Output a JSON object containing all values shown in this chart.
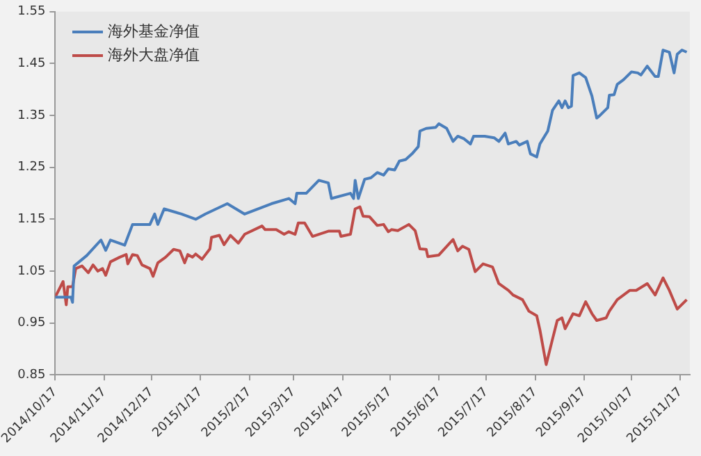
{
  "chart_data": {
    "type": "line",
    "xlim": [
      "2014-10-17",
      "2015-11-23"
    ],
    "xticks": [
      {
        "value": "2014-10-17",
        "label": "2014/10/17"
      },
      {
        "value": "2014-11-17",
        "label": "2014/11/17"
      },
      {
        "value": "2014-12-17",
        "label": "2014/12/17"
      },
      {
        "value": "2015-01-17",
        "label": "2015/1/17"
      },
      {
        "value": "2015-02-17",
        "label": "2015/2/17"
      },
      {
        "value": "2015-03-17",
        "label": "2015/3/17"
      },
      {
        "value": "2015-04-17",
        "label": "2015/4/17"
      },
      {
        "value": "2015-05-17",
        "label": "2015/5/17"
      },
      {
        "value": "2015-06-17",
        "label": "2015/6/17"
      },
      {
        "value": "2015-07-17",
        "label": "2015/7/17"
      },
      {
        "value": "2015-08-17",
        "label": "2015/8/17"
      },
      {
        "value": "2015-09-17",
        "label": "2015/9/17"
      },
      {
        "value": "2015-10-17",
        "label": "2015/10/17"
      },
      {
        "value": "2015-11-17",
        "label": "2015/11/17"
      }
    ],
    "ylim": [
      0.85,
      1.55
    ],
    "yticks": [
      0.85,
      0.95,
      1.05,
      1.15,
      1.25,
      1.35,
      1.45,
      1.55
    ],
    "grid": false,
    "legend": "top left",
    "marker": "none",
    "line_style": "solid",
    "series": [
      {
        "name": "海外基金净值",
        "color": "#4a7ebb",
        "x": [
          "2014-10-17",
          "2014-10-27",
          "2014-10-28",
          "2014-10-29",
          "2014-11-06",
          "2014-11-15",
          "2014-11-18",
          "2014-11-21",
          "2014-11-30",
          "2014-12-05",
          "2014-12-16",
          "2014-12-19",
          "2014-12-21",
          "2014-12-25",
          "2015-01-05",
          "2015-01-14",
          "2015-01-20",
          "2015-02-03",
          "2015-02-14",
          "2015-03-03",
          "2015-03-14",
          "2015-03-18",
          "2015-03-19",
          "2015-03-25",
          "2015-04-02",
          "2015-04-08",
          "2015-04-10",
          "2015-04-22",
          "2015-04-24",
          "2015-04-25",
          "2015-04-27",
          "2015-05-01",
          "2015-05-05",
          "2015-05-09",
          "2015-05-13",
          "2015-05-16",
          "2015-05-20",
          "2015-05-23",
          "2015-05-27",
          "2015-05-31",
          "2015-06-04",
          "2015-06-05",
          "2015-06-09",
          "2015-06-15",
          "2015-06-17",
          "2015-06-22",
          "2015-06-26",
          "2015-06-29",
          "2015-07-03",
          "2015-07-07",
          "2015-07-09",
          "2015-07-16",
          "2015-07-22",
          "2015-07-25",
          "2015-07-29",
          "2015-07-31",
          "2015-08-05",
          "2015-08-07",
          "2015-08-12",
          "2015-08-14",
          "2015-08-18",
          "2015-08-20",
          "2015-08-25",
          "2015-08-28",
          "2015-09-01",
          "2015-09-03",
          "2015-09-05",
          "2015-09-07",
          "2015-09-09",
          "2015-09-10",
          "2015-09-14",
          "2015-09-18",
          "2015-09-22",
          "2015-09-25",
          "2015-09-27",
          "2015-10-02",
          "2015-10-03",
          "2015-10-06",
          "2015-10-08",
          "2015-10-12",
          "2015-10-17",
          "2015-10-21",
          "2015-10-23",
          "2015-10-27",
          "2015-11-01",
          "2015-11-03",
          "2015-11-06",
          "2015-11-10",
          "2015-11-13",
          "2015-11-15",
          "2015-11-18",
          "2015-11-21"
        ],
        "values": [
          1.0,
          1.0,
          0.99,
          1.06,
          1.08,
          1.11,
          1.09,
          1.11,
          1.1,
          1.14,
          1.14,
          1.16,
          1.14,
          1.17,
          1.16,
          1.15,
          1.16,
          1.18,
          1.16,
          1.18,
          1.19,
          1.18,
          1.2,
          1.2,
          1.225,
          1.22,
          1.19,
          1.2,
          1.19,
          1.225,
          1.19,
          1.227,
          1.23,
          1.24,
          1.235,
          1.247,
          1.245,
          1.262,
          1.265,
          1.276,
          1.29,
          1.32,
          1.325,
          1.327,
          1.334,
          1.325,
          1.3,
          1.31,
          1.305,
          1.295,
          1.31,
          1.31,
          1.307,
          1.3,
          1.316,
          1.295,
          1.3,
          1.293,
          1.3,
          1.276,
          1.27,
          1.295,
          1.32,
          1.36,
          1.378,
          1.365,
          1.378,
          1.365,
          1.368,
          1.427,
          1.432,
          1.423,
          1.387,
          1.345,
          1.35,
          1.365,
          1.389,
          1.39,
          1.41,
          1.419,
          1.434,
          1.432,
          1.428,
          1.445,
          1.425,
          1.425,
          1.476,
          1.472,
          1.432,
          1.468,
          1.476,
          1.472
        ]
      },
      {
        "name": "海外大盘净值",
        "color": "#be4b48",
        "x": [
          "2014-10-17",
          "2014-10-22",
          "2014-10-24",
          "2014-10-25",
          "2014-10-28",
          "2014-10-30",
          "2014-11-03",
          "2014-11-07",
          "2014-11-10",
          "2014-11-13",
          "2014-11-16",
          "2014-11-18",
          "2014-11-21",
          "2014-11-27",
          "2014-12-01",
          "2014-12-02",
          "2014-12-05",
          "2014-12-08",
          "2014-12-11",
          "2014-12-16",
          "2014-12-18",
          "2014-12-21",
          "2014-12-26",
          "2014-12-31",
          "2015-01-04",
          "2015-01-07",
          "2015-01-09",
          "2015-01-12",
          "2015-01-14",
          "2015-01-18",
          "2015-01-23",
          "2015-01-24",
          "2015-01-29",
          "2015-02-01",
          "2015-02-05",
          "2015-02-10",
          "2015-02-14",
          "2015-02-25",
          "2015-02-27",
          "2015-03-06",
          "2015-03-11",
          "2015-03-14",
          "2015-03-18",
          "2015-03-20",
          "2015-03-24",
          "2015-03-29",
          "2015-04-02",
          "2015-04-08",
          "2015-04-15",
          "2015-04-16",
          "2015-04-22",
          "2015-04-25",
          "2015-04-28",
          "2015-04-30",
          "2015-05-04",
          "2015-05-09",
          "2015-05-13",
          "2015-05-16",
          "2015-05-18",
          "2015-05-22",
          "2015-05-29",
          "2015-06-02",
          "2015-06-05",
          "2015-06-09",
          "2015-06-10",
          "2015-06-17",
          "2015-06-26",
          "2015-06-29",
          "2015-07-02",
          "2015-07-06",
          "2015-07-10",
          "2015-07-15",
          "2015-07-21",
          "2015-07-25",
          "2015-07-31",
          "2015-08-03",
          "2015-08-09",
          "2015-08-13",
          "2015-08-18",
          "2015-08-20",
          "2015-08-24",
          "2015-08-28",
          "2015-08-31",
          "2015-09-03",
          "2015-09-05",
          "2015-09-10",
          "2015-09-14",
          "2015-09-18",
          "2015-09-22",
          "2015-09-25",
          "2015-10-01",
          "2015-10-03",
          "2015-10-08",
          "2015-10-12",
          "2015-10-16",
          "2015-10-20",
          "2015-10-27",
          "2015-11-01",
          "2015-11-06",
          "2015-11-10",
          "2015-11-15",
          "2015-11-18",
          "2015-11-21"
        ],
        "values": [
          1.0,
          1.03,
          0.985,
          1.02,
          1.02,
          1.055,
          1.06,
          1.047,
          1.062,
          1.05,
          1.055,
          1.042,
          1.068,
          1.077,
          1.082,
          1.064,
          1.082,
          1.08,
          1.062,
          1.055,
          1.04,
          1.066,
          1.077,
          1.092,
          1.089,
          1.066,
          1.082,
          1.077,
          1.083,
          1.073,
          1.093,
          1.115,
          1.119,
          1.101,
          1.119,
          1.104,
          1.121,
          1.137,
          1.13,
          1.13,
          1.121,
          1.126,
          1.121,
          1.143,
          1.143,
          1.117,
          1.121,
          1.127,
          1.127,
          1.117,
          1.121,
          1.17,
          1.174,
          1.156,
          1.155,
          1.138,
          1.14,
          1.126,
          1.13,
          1.128,
          1.14,
          1.128,
          1.093,
          1.092,
          1.078,
          1.081,
          1.111,
          1.089,
          1.098,
          1.092,
          1.049,
          1.064,
          1.058,
          1.026,
          1.013,
          1.004,
          0.995,
          0.973,
          0.964,
          0.937,
          0.87,
          0.919,
          0.955,
          0.96,
          0.939,
          0.968,
          0.964,
          0.991,
          0.968,
          0.955,
          0.96,
          0.973,
          0.995,
          1.004,
          1.013,
          1.013,
          1.026,
          1.004,
          1.037,
          1.013,
          0.977,
          0.986,
          0.995
        ]
      }
    ]
  }
}
